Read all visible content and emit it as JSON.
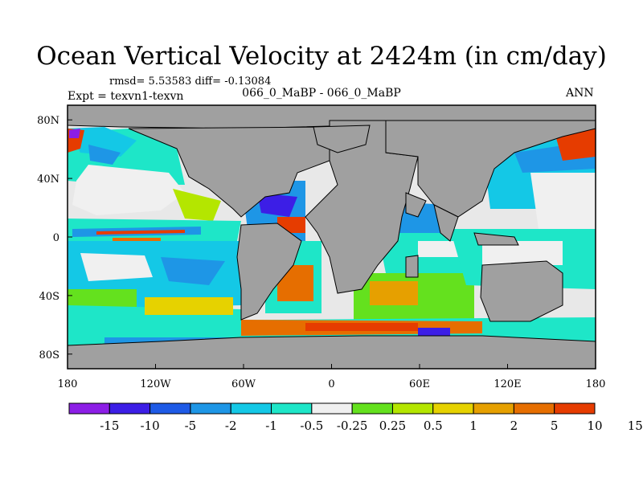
{
  "title": "Ocean Vertical Velocity at 2424m (in cm/day)",
  "stats": "rmsd= 5.53583 diff= -0.13084",
  "experiment": "Expt = texvn1-texvn",
  "case": "066_0_MaBP - 066_0_MaBP",
  "season": "ANN",
  "map": {
    "projection": "cylindrical equidistant",
    "lon_range": [
      -180,
      180
    ],
    "lat_range": [
      -90,
      90
    ],
    "land_color": "#a0a0a0",
    "x_ticks": [
      {
        "lon": -180,
        "label": "180"
      },
      {
        "lon": -120,
        "label": "120W"
      },
      {
        "lon": -60,
        "label": "60W"
      },
      {
        "lon": 0,
        "label": "0"
      },
      {
        "lon": 60,
        "label": "60E"
      },
      {
        "lon": 120,
        "label": "120E"
      },
      {
        "lon": 180,
        "label": "180"
      }
    ],
    "y_ticks": [
      {
        "lat": 80,
        "label": "80N"
      },
      {
        "lat": 40,
        "label": "40N"
      },
      {
        "lat": 0,
        "label": "0"
      },
      {
        "lat": -40,
        "label": "40S"
      },
      {
        "lat": -80,
        "label": "80S"
      }
    ]
  },
  "colorbar": {
    "colors": [
      "#8c1ee6",
      "#3c1ee6",
      "#1e5ae6",
      "#1e96e6",
      "#14c8e6",
      "#1ee6c8",
      "#f0f0f0",
      "#64e11e",
      "#b4e600",
      "#e6d200",
      "#e6a000",
      "#e66e00",
      "#e63c00"
    ],
    "labels": [
      "-15",
      "-10",
      "-5",
      "-2",
      "-1",
      "-0.5",
      "-0.25",
      "0.25",
      "0.5",
      "1",
      "2",
      "5",
      "10",
      "15"
    ]
  }
}
